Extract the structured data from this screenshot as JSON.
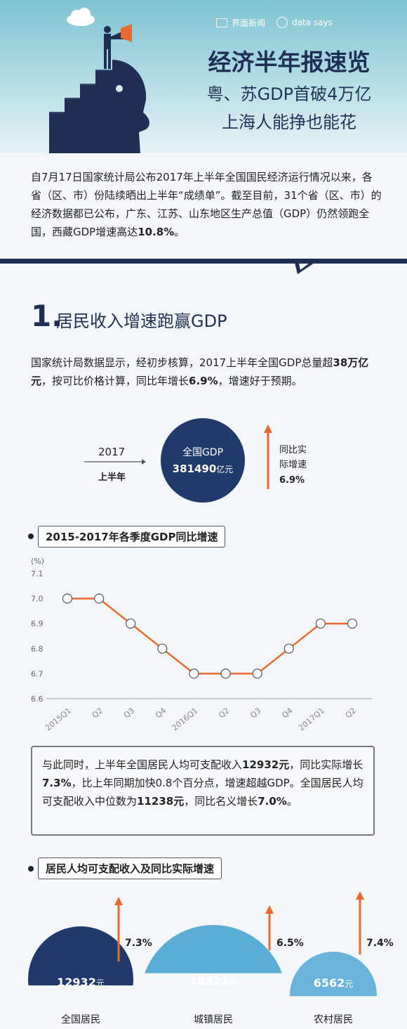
{
  "header": {
    "brand1": "界面新闻",
    "brand2": "data says",
    "title": "经济半年报速览",
    "subtitle1": "粤、苏GDP首破4万亿",
    "subtitle2": "上海人能挣也能花"
  },
  "intro": {
    "text": "自7月17日国家统计局公布2017年上半年全国国民经济运行情况以来，各省（区、市）份陆续晒出上半年“成绩单”。截至目前，31个省（区、市）的经济数据都已公布，广东、江苏、山东地区生产总值（GDP）仍然领跑全国，西藏GDP增速高达",
    "highlight": "10.8%",
    "end": "。"
  },
  "section1": {
    "number": "1.",
    "title": "居民收入增速跑赢GDP",
    "para_a": "国家统计局数据显示，经初步核算，2017上半年全国GDP总量超",
    "para_b": "38万亿元",
    "para_c": "，按可比价格计算，同比年增长",
    "para_d": "6.9%",
    "para_e": "，增速好于预期。",
    "year": "2017",
    "half": "上半年",
    "circle_label": "全国GDP",
    "circle_value": "381490",
    "circle_unit": "亿元",
    "growth_label1": "同比实",
    "growth_label2": "际增速",
    "growth_value": "6.9%"
  },
  "chart_title": "2015-2017年各季度GDP同比增速",
  "chart_data": {
    "type": "line",
    "title": "2015-2017年各季度GDP同比增速",
    "ylabel": "(%)",
    "categories": [
      "2015Q1",
      "Q2",
      "Q3",
      "Q4",
      "2016Q1",
      "Q2",
      "Q3",
      "Q4",
      "2017Q1",
      "Q2"
    ],
    "values": [
      7.0,
      7.0,
      6.9,
      6.8,
      6.7,
      6.7,
      6.7,
      6.8,
      6.9,
      6.9
    ],
    "ylim": [
      6.6,
      7.1
    ],
    "yticks": [
      "7.1",
      "7.0",
      "6.9",
      "6.8",
      "6.7",
      "6.6"
    ],
    "grid": false,
    "line_color": "#e86a2c"
  },
  "info_box": {
    "t1": "与此同时，上半年全国居民人均可支配收入",
    "b1": "12932元",
    "t2": "，同比实际增长",
    "b2": "7.3%",
    "t3": "，比上年同期加快0.8个百分点，增速超越GDP。全国居民人均可支配收入中位数为",
    "b3": "11238元",
    "t4": "，同比名义增长",
    "b4": "7.0%",
    "t5": "。"
  },
  "income_title": "居民人均可支配收入及同比实际增速",
  "income": [
    {
      "name": "全国居民",
      "value": "12932",
      "unit": "元",
      "growth": "7.3%",
      "color": "#1f3a6b"
    },
    {
      "name": "城镇居民",
      "value": "18322",
      "unit": "元",
      "growth": "6.5%",
      "color": "#5aaed6"
    },
    {
      "name": "农村居民",
      "value": "6562",
      "unit": "元",
      "growth": "7.4%",
      "color": "#6ab4dc"
    }
  ],
  "colors": {
    "navy": "#1f2f53",
    "orange": "#e86a2c",
    "sky": "#7ec3d1"
  }
}
